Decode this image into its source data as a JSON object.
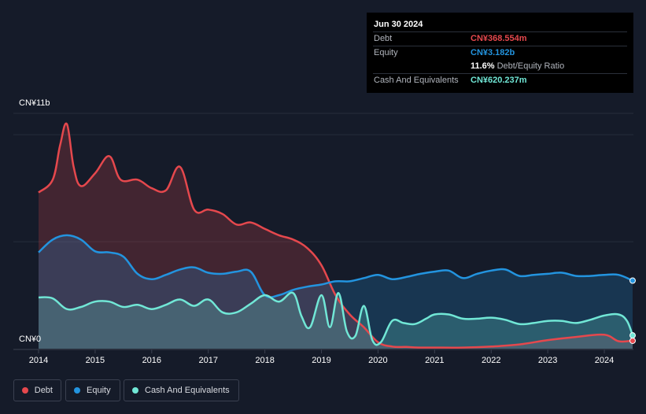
{
  "tooltip": {
    "date": "Jun 30 2024",
    "debt_label": "Debt",
    "debt_value": "CN¥368.554m",
    "equity_label": "Equity",
    "equity_value": "CN¥3.182b",
    "ratio_value": "11.6%",
    "ratio_label": "Debt/Equity Ratio",
    "cash_label": "Cash And Equivalents",
    "cash_value": "CN¥620.237m"
  },
  "legend": {
    "debt": "Debt",
    "equity": "Equity",
    "cash": "Cash And Equivalents"
  },
  "colors": {
    "debt": "#e5484d",
    "equity": "#2394df",
    "cash": "#71e7d6",
    "background": "#151b29"
  },
  "chart_data": {
    "type": "area",
    "title": "",
    "xlabel": "",
    "ylabel": "",
    "y_top_label": "CN¥11b",
    "y_bottom_label": "CN¥0",
    "ylim": [
      0,
      11
    ],
    "xlim": [
      2014.0,
      2024.5
    ],
    "x_ticks": [
      "2014",
      "2015",
      "2016",
      "2017",
      "2018",
      "2019",
      "2020",
      "2021",
      "2022",
      "2023",
      "2024"
    ],
    "series": [
      {
        "name": "Debt",
        "x": [
          2014.0,
          2014.25,
          2014.38,
          2014.5,
          2014.62,
          2014.75,
          2015.0,
          2015.25,
          2015.45,
          2015.75,
          2016.0,
          2016.25,
          2016.5,
          2016.75,
          2017.0,
          2017.25,
          2017.5,
          2017.75,
          2018.0,
          2018.25,
          2018.5,
          2018.75,
          2019.0,
          2019.25,
          2019.5,
          2019.75,
          2020.0,
          2020.25,
          2020.5,
          2020.75,
          2021.0,
          2021.5,
          2022.0,
          2022.5,
          2023.0,
          2023.5,
          2024.0,
          2024.25,
          2024.5
        ],
        "values": [
          7.3,
          7.9,
          9.5,
          10.5,
          8.5,
          7.6,
          8.2,
          9.0,
          7.9,
          7.9,
          7.5,
          7.4,
          8.5,
          6.5,
          6.5,
          6.3,
          5.8,
          5.9,
          5.6,
          5.3,
          5.1,
          4.7,
          3.9,
          2.5,
          1.6,
          1.0,
          0.3,
          0.1,
          0.08,
          0.05,
          0.05,
          0.05,
          0.1,
          0.2,
          0.4,
          0.55,
          0.65,
          0.35,
          0.37
        ]
      },
      {
        "name": "Equity",
        "x": [
          2014.0,
          2014.25,
          2014.5,
          2014.75,
          2015.0,
          2015.25,
          2015.5,
          2015.75,
          2016.0,
          2016.25,
          2016.5,
          2016.75,
          2017.0,
          2017.25,
          2017.5,
          2017.75,
          2018.0,
          2018.25,
          2018.5,
          2018.75,
          2019.0,
          2019.25,
          2019.5,
          2019.75,
          2020.0,
          2020.25,
          2020.5,
          2020.75,
          2021.0,
          2021.25,
          2021.5,
          2021.75,
          2022.0,
          2022.25,
          2022.5,
          2022.75,
          2023.0,
          2023.25,
          2023.5,
          2023.75,
          2024.0,
          2024.25,
          2024.5
        ],
        "values": [
          4.5,
          5.1,
          5.3,
          5.1,
          4.55,
          4.5,
          4.3,
          3.5,
          3.25,
          3.45,
          3.7,
          3.8,
          3.55,
          3.5,
          3.6,
          3.6,
          2.5,
          2.5,
          2.75,
          2.9,
          3.0,
          3.15,
          3.15,
          3.3,
          3.45,
          3.25,
          3.35,
          3.5,
          3.6,
          3.65,
          3.3,
          3.5,
          3.65,
          3.7,
          3.4,
          3.45,
          3.5,
          3.55,
          3.4,
          3.4,
          3.45,
          3.45,
          3.18
        ]
      },
      {
        "name": "Cash And Equivalents",
        "x": [
          2014.0,
          2014.25,
          2014.5,
          2014.75,
          2015.0,
          2015.25,
          2015.5,
          2015.75,
          2016.0,
          2016.25,
          2016.5,
          2016.75,
          2017.0,
          2017.25,
          2017.5,
          2017.75,
          2018.0,
          2018.25,
          2018.5,
          2018.65,
          2018.8,
          2019.0,
          2019.15,
          2019.3,
          2019.45,
          2019.6,
          2019.75,
          2019.9,
          2020.05,
          2020.25,
          2020.45,
          2020.65,
          2020.85,
          2021.0,
          2021.25,
          2021.5,
          2021.75,
          2022.0,
          2022.25,
          2022.5,
          2022.75,
          2023.0,
          2023.25,
          2023.5,
          2023.75,
          2024.0,
          2024.25,
          2024.4,
          2024.5
        ],
        "values": [
          2.4,
          2.35,
          1.85,
          1.95,
          2.2,
          2.2,
          1.95,
          2.05,
          1.85,
          2.05,
          2.3,
          2.0,
          2.3,
          1.7,
          1.7,
          2.1,
          2.5,
          2.2,
          2.6,
          1.5,
          1.0,
          2.5,
          1.0,
          2.6,
          0.8,
          0.6,
          2.0,
          0.4,
          0.3,
          1.3,
          1.2,
          1.15,
          1.4,
          1.6,
          1.6,
          1.4,
          1.4,
          1.45,
          1.35,
          1.15,
          1.2,
          1.3,
          1.3,
          1.2,
          1.35,
          1.55,
          1.6,
          1.3,
          0.62
        ]
      }
    ]
  }
}
